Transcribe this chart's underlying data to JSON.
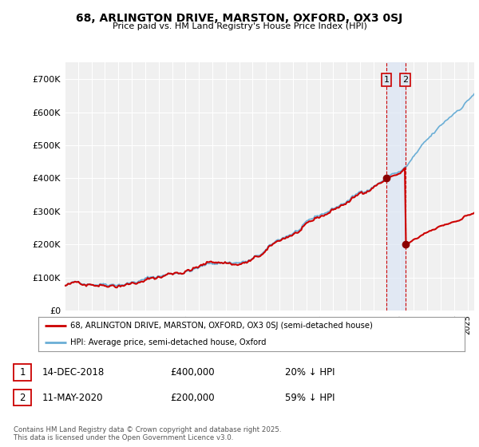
{
  "title": "68, ARLINGTON DRIVE, MARSTON, OXFORD, OX3 0SJ",
  "subtitle": "Price paid vs. HM Land Registry's House Price Index (HPI)",
  "legend_line1": "68, ARLINGTON DRIVE, MARSTON, OXFORD, OX3 0SJ (semi-detached house)",
  "legend_line2": "HPI: Average price, semi-detached house, Oxford",
  "footer": "Contains HM Land Registry data © Crown copyright and database right 2025.\nThis data is licensed under the Open Government Licence v3.0.",
  "transaction1_date": "14-DEC-2018",
  "transaction1_price": "£400,000",
  "transaction1_hpi": "20% ↓ HPI",
  "transaction2_date": "11-MAY-2020",
  "transaction2_price": "£200,000",
  "transaction2_hpi": "59% ↓ HPI",
  "ylim": [
    0,
    750000
  ],
  "yticks": [
    0,
    100000,
    200000,
    300000,
    400000,
    500000,
    600000,
    700000
  ],
  "ytick_labels": [
    "£0",
    "£100K",
    "£200K",
    "£300K",
    "£400K",
    "£500K",
    "£600K",
    "£700K"
  ],
  "hpi_color": "#6aaed6",
  "price_color": "#cc0000",
  "marker_color": "#8b0000",
  "vline_color": "#cc0000",
  "shade_color": "#dce6f5",
  "bg_color": "#ffffff",
  "plot_bg_color": "#f0f0f0",
  "grid_color": "#ffffff",
  "annotation_bg": "#dce6f0",
  "transaction1_x": 2018.96,
  "transaction1_y": 400000,
  "transaction2_x": 2020.37,
  "transaction2_y": 200000,
  "xlim_start": 1995,
  "xlim_end": 2025.5,
  "hpi_seed": 42,
  "price_seed": 7
}
